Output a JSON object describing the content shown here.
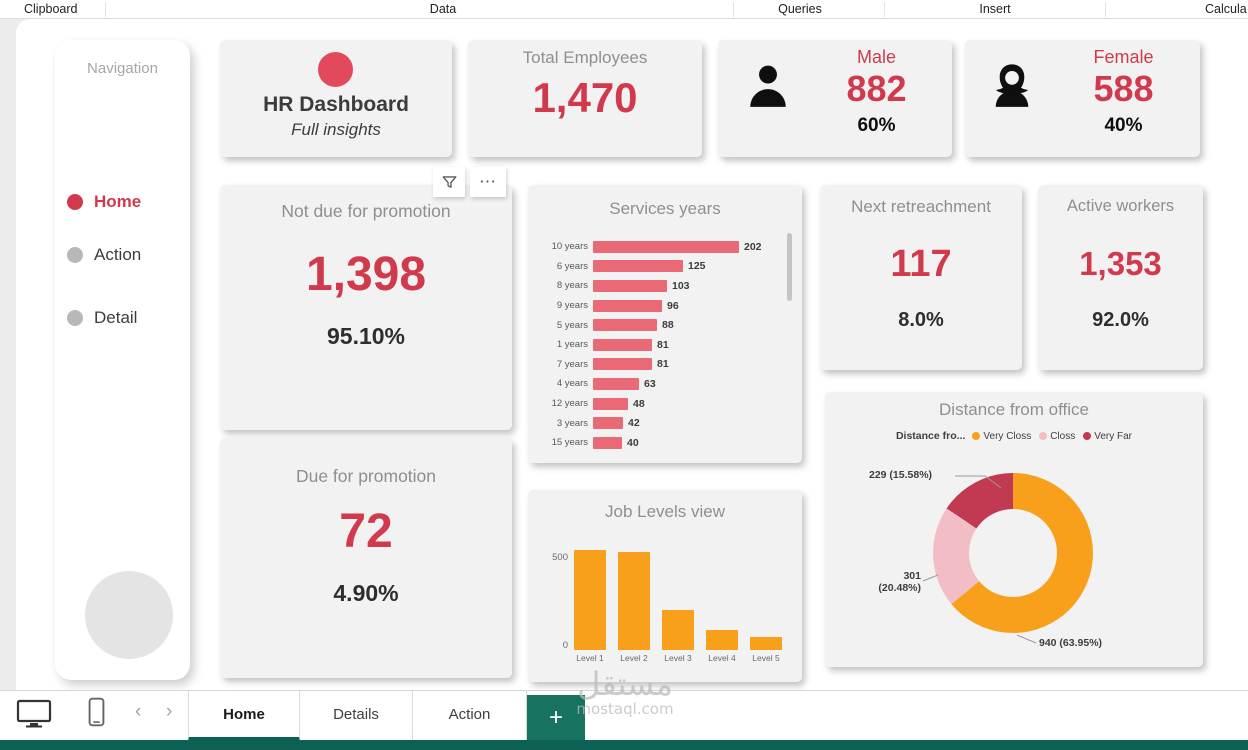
{
  "ribbon": {
    "groups": [
      {
        "label": "Clipboard"
      },
      {
        "label": "Data"
      },
      {
        "label": "Queries"
      },
      {
        "label": "Insert"
      },
      {
        "label": "Calcula"
      }
    ]
  },
  "navigation": {
    "title": "Navigation",
    "items": [
      {
        "label": "Home",
        "active": true
      },
      {
        "label": "Action",
        "active": false
      },
      {
        "label": "Detail",
        "active": false
      }
    ]
  },
  "header_card": {
    "title": "HR Dashboard",
    "subtitle": "Full insights"
  },
  "kpis": {
    "total_employees": {
      "title": "Total Employees",
      "value": "1,470"
    },
    "male": {
      "title": "Male",
      "value": "882",
      "percent": "60%"
    },
    "female": {
      "title": "Female",
      "value": "588",
      "percent": "40%"
    },
    "not_due_promotion": {
      "title": "Not due for promotion",
      "value": "1,398",
      "percent": "95.10%"
    },
    "due_promotion": {
      "title": "Due for promotion",
      "value": "72",
      "percent": "4.90%"
    },
    "next_retreachment": {
      "title": "Next retreachment",
      "value": "117",
      "percent": "8.0%"
    },
    "active_workers": {
      "title": "Active workers",
      "value": "1,353",
      "percent": "92.0%"
    }
  },
  "chart_data": [
    {
      "type": "bar",
      "orientation": "horizontal",
      "title": "Services years",
      "categories": [
        "10 years",
        "6 years",
        "8 years",
        "9 years",
        "5 years",
        "1 years",
        "7 years",
        "4 years",
        "12 years",
        "3 years",
        "15 years"
      ],
      "values": [
        202,
        125,
        103,
        96,
        88,
        81,
        81,
        63,
        48,
        42,
        40
      ],
      "bar_color": "#e96a76",
      "xlabel": "",
      "ylabel": "",
      "grid": false,
      "legend": false
    },
    {
      "type": "bar",
      "orientation": "vertical",
      "title": "Job Levels view",
      "categories": [
        "Level 1",
        "Level 2",
        "Level 3",
        "Level 4",
        "Level 5"
      ],
      "values": [
        543,
        534,
        218,
        106,
        69
      ],
      "yticks": [
        "500",
        "0"
      ],
      "ylim": [
        0,
        600
      ],
      "bar_color": "#f8a01c",
      "xlabel": "",
      "ylabel": "",
      "grid": false,
      "legend": false
    },
    {
      "type": "pie",
      "title": "Distance from office",
      "legend_label": "Distance fro...",
      "legend_position": "top",
      "slices": [
        {
          "label": "Very Closs",
          "value": 940,
          "percent": "63.95%",
          "color": "#f8a01c"
        },
        {
          "label": "Closs",
          "value": 301,
          "percent": "20.48%",
          "color": "#f3bdc6"
        },
        {
          "label": "Very Far",
          "value": 229,
          "percent": "15.58%",
          "color": "#c23a52"
        }
      ],
      "callouts": [
        "229 (15.58%)",
        "301\n(20.48%)",
        "940 (63.95%)"
      ]
    }
  ],
  "footer": {
    "tabs": [
      {
        "label": "Home",
        "active": true
      },
      {
        "label": "Details",
        "active": false
      },
      {
        "label": "Action",
        "active": false
      }
    ],
    "add_page_label": "+"
  },
  "watermark": {
    "arabic": "مستقل",
    "url": "mostaql.com"
  },
  "colors": {
    "accent_red": "#d13a4c",
    "bar_pink": "#e96a76",
    "orange": "#f8a01c",
    "light_pink": "#f3bdc6",
    "dark_red": "#c23a52",
    "teal": "#0d6154",
    "card_bg": "#f2f2f2"
  }
}
